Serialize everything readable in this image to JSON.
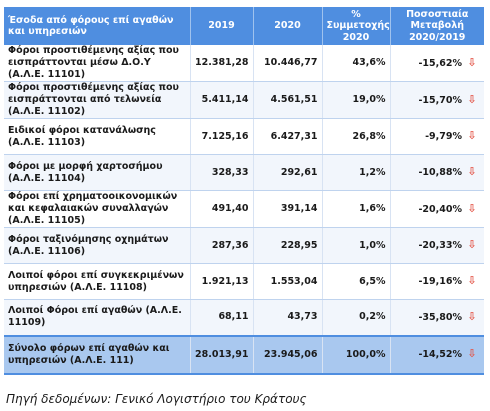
{
  "table": {
    "headers": [
      "Έσοδα από φόρους επί αγαθών και υπηρεσιών",
      "2019",
      "2020",
      "% Συμμετοχής 2020",
      "Ποσοστιαία Μεταβολή 2020/2019"
    ],
    "rows": [
      {
        "label": "Φόροι προστιθέμενης αξίας που εισπράττονται μέσω Δ.Ο.Υ (Α.Λ.Ε. 11101)",
        "v2019": "12.381,28",
        "v2020": "10.446,77",
        "share": "43,6%",
        "change": "-15,62%"
      },
      {
        "label": "Φόροι προστιθέμενης αξίας που εισπράττονται από τελωνεία (Α.Λ.Ε. 11102)",
        "v2019": "5.411,14",
        "v2020": "4.561,51",
        "share": "19,0%",
        "change": "-15,70%"
      },
      {
        "label": "Ειδικοί φόροι κατανάλωσης (Α.Λ.Ε. 11103)",
        "v2019": "7.125,16",
        "v2020": "6.427,31",
        "share": "26,8%",
        "change": "-9,79%"
      },
      {
        "label": "Φόροι με μορφή χαρτοσήμου (Α.Λ.Ε. 11104)",
        "v2019": "328,33",
        "v2020": "292,61",
        "share": "1,2%",
        "change": "-10,88%"
      },
      {
        "label": "Φόροι επί χρηματοοικονομικών και κεφαλαιακών συναλλαγών (Α.Λ.Ε. 11105)",
        "v2019": "491,40",
        "v2020": "391,14",
        "share": "1,6%",
        "change": "-20,40%"
      },
      {
        "label": "Φόροι ταξινόμησης οχημάτων (Α.Λ.Ε. 11106)",
        "v2019": "287,36",
        "v2020": "228,95",
        "share": "1,0%",
        "change": "-20,33%"
      },
      {
        "label": "Λοιποί φόροι επί συγκεκριμένων υπηρεσιών (Α.Λ.Ε. 11108)",
        "v2019": "1.921,13",
        "v2020": "1.553,04",
        "share": "6,5%",
        "change": "-19,16%"
      },
      {
        "label": "Λοιποί Φόροι επί αγαθών (Α.Λ.Ε. 11109)",
        "v2019": "68,11",
        "v2020": "43,73",
        "share": "0,2%",
        "change": "-35,80%"
      }
    ],
    "total": {
      "label": "Σύνολο φόρων επί αγαθών και υπηρεσιών (Α.Λ.Ε. 111)",
      "v2019": "28.013,91",
      "v2020": "23.945,06",
      "share": "100,0%",
      "change": "-14,52%"
    },
    "arrow_icon": "down-arrow-icon",
    "arrow_color": "#e4574a",
    "header_color": "#4f8ee0"
  },
  "source_note": "Πηγή δεδομένων: Γενικό Λογιστήριο του Κράτους"
}
